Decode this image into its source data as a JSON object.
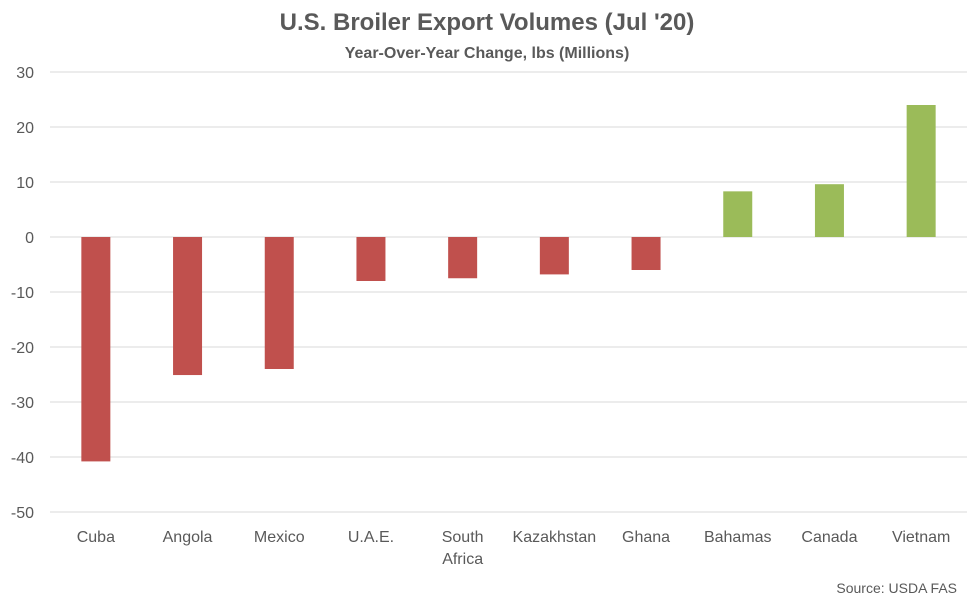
{
  "chart_data": {
    "type": "bar",
    "title": "U.S. Broiler Export Volumes (Jul '20)",
    "subtitle": "Year-Over-Year Change, lbs (Millions)",
    "source": "Source: USDA FAS",
    "categories": [
      "Cuba",
      "Angola",
      "Mexico",
      "U.A.E.",
      "South Africa",
      "Kazakhstan",
      "Ghana",
      "Bahamas",
      "Canada",
      "Vietnam"
    ],
    "category_lines": [
      [
        "Cuba"
      ],
      [
        "Angola"
      ],
      [
        "Mexico"
      ],
      [
        "U.A.E."
      ],
      [
        "South",
        "Africa"
      ],
      [
        "Kazakhstan"
      ],
      [
        "Ghana"
      ],
      [
        "Bahamas"
      ],
      [
        "Canada"
      ],
      [
        "Vietnam"
      ]
    ],
    "values": [
      -40.8,
      -25.1,
      -24.0,
      -8.0,
      -7.5,
      -6.8,
      -6.0,
      8.3,
      9.6,
      24.0
    ],
    "ylim": [
      -50,
      30
    ],
    "yticks": [
      30,
      20,
      10,
      0,
      -10,
      -20,
      -30,
      -40,
      -50
    ],
    "grid": true,
    "legend": "none",
    "colors": {
      "negative": "#c0504d",
      "positive": "#9bbb59",
      "grid": "#d9d9d9",
      "text": "#595959"
    }
  }
}
